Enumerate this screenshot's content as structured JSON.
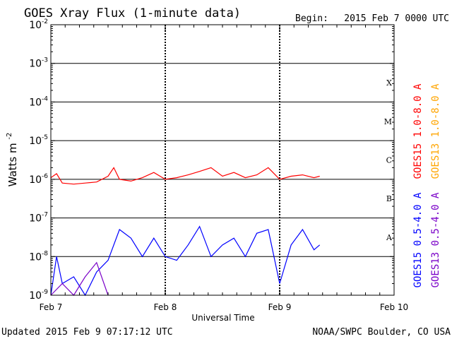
{
  "chart_data": {
    "type": "line",
    "title": "GOES Xray Flux (1-minute data)",
    "begin_label": "Begin:",
    "begin_value": "2015 Feb 7 0000 UTC",
    "xlabel": "Universal Time",
    "ylabel_main": "Watts m",
    "ylabel_sup": "-2",
    "x_tick_labels": [
      "Feb 7",
      "Feb 8",
      "Feb 9",
      "Feb 10"
    ],
    "x_ticks_days": [
      0,
      1,
      2,
      3
    ],
    "xlim_days": [
      0,
      3
    ],
    "y_scale": "log",
    "ylim": [
      1e-09,
      0.01
    ],
    "y_tick_exponents": [
      -9,
      -8,
      -7,
      -6,
      -5,
      -4,
      -3,
      -2
    ],
    "flare_classes": [
      {
        "label": "A",
        "exponent": -8
      },
      {
        "label": "B",
        "exponent": -7
      },
      {
        "label": "C",
        "exponent": -6
      },
      {
        "label": "M",
        "exponent": -5
      },
      {
        "label": "X",
        "exponent": -4
      }
    ],
    "grid": true,
    "legend_position": "right",
    "series": [
      {
        "name": "GOES15 1.0-8.0 A",
        "color": "#ff0000",
        "x": [
          0.0,
          0.05,
          0.1,
          0.2,
          0.3,
          0.4,
          0.5,
          0.55,
          0.6,
          0.7,
          0.8,
          0.9,
          1.0,
          1.1,
          1.2,
          1.3,
          1.4,
          1.5,
          1.6,
          1.7,
          1.8,
          1.9,
          2.0,
          2.1,
          2.2,
          2.3,
          2.35
        ],
        "y": [
          1.1e-06,
          1.4e-06,
          8e-07,
          7.5e-07,
          8e-07,
          8.5e-07,
          1.2e-06,
          2e-06,
          1e-06,
          9e-07,
          1.1e-06,
          1.5e-06,
          1e-06,
          1.1e-06,
          1.3e-06,
          1.6e-06,
          2e-06,
          1.2e-06,
          1.5e-06,
          1.1e-06,
          1.3e-06,
          2e-06,
          1e-06,
          1.2e-06,
          1.3e-06,
          1.1e-06,
          1.2e-06
        ]
      },
      {
        "name": "GOES13 1.0-8.0 A",
        "color": "#ffa500",
        "x": [],
        "y": []
      },
      {
        "name": "GOES15 0.5-4.0 A",
        "color": "#0000ff",
        "x": [
          0.0,
          0.05,
          0.1,
          0.2,
          0.3,
          0.4,
          0.5,
          0.6,
          0.7,
          0.8,
          0.9,
          1.0,
          1.1,
          1.2,
          1.3,
          1.4,
          1.5,
          1.6,
          1.7,
          1.8,
          1.9,
          2.0,
          2.1,
          2.2,
          2.3,
          2.35
        ],
        "y": [
          1e-09,
          1e-08,
          2e-09,
          3e-09,
          1e-09,
          4e-09,
          8e-09,
          5e-08,
          3e-08,
          1e-08,
          3e-08,
          1e-08,
          8e-09,
          2e-08,
          6e-08,
          1e-08,
          2e-08,
          3e-08,
          1e-08,
          4e-08,
          5e-08,
          2e-09,
          2e-08,
          5e-08,
          1.5e-08,
          2e-08
        ]
      },
      {
        "name": "GOES13 0.5-4.0 A",
        "color": "#7a00c8",
        "x": [
          0.0,
          0.1,
          0.2,
          0.3,
          0.4,
          0.5
        ],
        "y": [
          1e-09,
          2e-09,
          1e-09,
          3e-09,
          7e-09,
          1e-09
        ]
      }
    ]
  },
  "footer": {
    "updated": "Updated 2015 Feb  9 07:17:12 UTC",
    "credit": "NOAA/SWPC Boulder, CO USA"
  }
}
